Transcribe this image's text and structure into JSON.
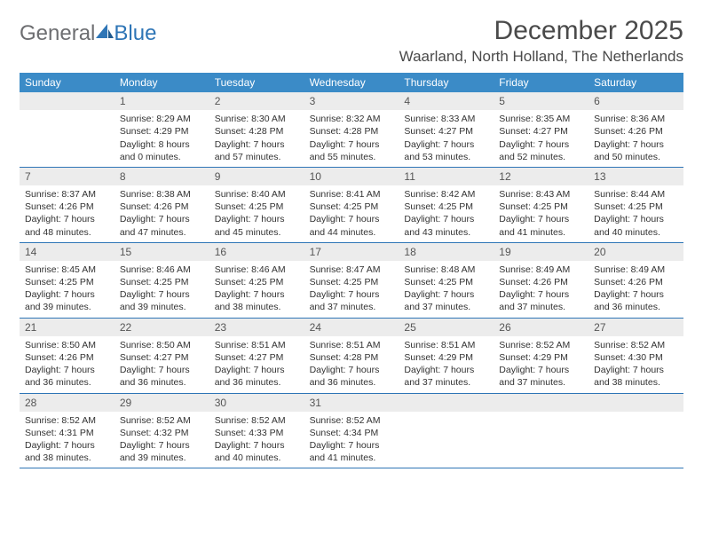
{
  "logo": {
    "general": "General",
    "blue": "Blue"
  },
  "title": "December 2025",
  "location": "Waarland, North Holland, The Netherlands",
  "colors": {
    "header_bg": "#3b8bc7",
    "header_text": "#ffffff",
    "daynum_bg": "#ececec",
    "border": "#2e75b6",
    "body_text": "#323232",
    "logo_gray": "#6d6e71",
    "logo_blue": "#2e75b6"
  },
  "weekdays": [
    "Sunday",
    "Monday",
    "Tuesday",
    "Wednesday",
    "Thursday",
    "Friday",
    "Saturday"
  ],
  "weeks": [
    [
      {
        "day": "",
        "sunrise": "",
        "sunset": "",
        "d1": "",
        "d2": ""
      },
      {
        "day": "1",
        "sunrise": "Sunrise: 8:29 AM",
        "sunset": "Sunset: 4:29 PM",
        "d1": "Daylight: 8 hours",
        "d2": "and 0 minutes."
      },
      {
        "day": "2",
        "sunrise": "Sunrise: 8:30 AM",
        "sunset": "Sunset: 4:28 PM",
        "d1": "Daylight: 7 hours",
        "d2": "and 57 minutes."
      },
      {
        "day": "3",
        "sunrise": "Sunrise: 8:32 AM",
        "sunset": "Sunset: 4:28 PM",
        "d1": "Daylight: 7 hours",
        "d2": "and 55 minutes."
      },
      {
        "day": "4",
        "sunrise": "Sunrise: 8:33 AM",
        "sunset": "Sunset: 4:27 PM",
        "d1": "Daylight: 7 hours",
        "d2": "and 53 minutes."
      },
      {
        "day": "5",
        "sunrise": "Sunrise: 8:35 AM",
        "sunset": "Sunset: 4:27 PM",
        "d1": "Daylight: 7 hours",
        "d2": "and 52 minutes."
      },
      {
        "day": "6",
        "sunrise": "Sunrise: 8:36 AM",
        "sunset": "Sunset: 4:26 PM",
        "d1": "Daylight: 7 hours",
        "d2": "and 50 minutes."
      }
    ],
    [
      {
        "day": "7",
        "sunrise": "Sunrise: 8:37 AM",
        "sunset": "Sunset: 4:26 PM",
        "d1": "Daylight: 7 hours",
        "d2": "and 48 minutes."
      },
      {
        "day": "8",
        "sunrise": "Sunrise: 8:38 AM",
        "sunset": "Sunset: 4:26 PM",
        "d1": "Daylight: 7 hours",
        "d2": "and 47 minutes."
      },
      {
        "day": "9",
        "sunrise": "Sunrise: 8:40 AM",
        "sunset": "Sunset: 4:25 PM",
        "d1": "Daylight: 7 hours",
        "d2": "and 45 minutes."
      },
      {
        "day": "10",
        "sunrise": "Sunrise: 8:41 AM",
        "sunset": "Sunset: 4:25 PM",
        "d1": "Daylight: 7 hours",
        "d2": "and 44 minutes."
      },
      {
        "day": "11",
        "sunrise": "Sunrise: 8:42 AM",
        "sunset": "Sunset: 4:25 PM",
        "d1": "Daylight: 7 hours",
        "d2": "and 43 minutes."
      },
      {
        "day": "12",
        "sunrise": "Sunrise: 8:43 AM",
        "sunset": "Sunset: 4:25 PM",
        "d1": "Daylight: 7 hours",
        "d2": "and 41 minutes."
      },
      {
        "day": "13",
        "sunrise": "Sunrise: 8:44 AM",
        "sunset": "Sunset: 4:25 PM",
        "d1": "Daylight: 7 hours",
        "d2": "and 40 minutes."
      }
    ],
    [
      {
        "day": "14",
        "sunrise": "Sunrise: 8:45 AM",
        "sunset": "Sunset: 4:25 PM",
        "d1": "Daylight: 7 hours",
        "d2": "and 39 minutes."
      },
      {
        "day": "15",
        "sunrise": "Sunrise: 8:46 AM",
        "sunset": "Sunset: 4:25 PM",
        "d1": "Daylight: 7 hours",
        "d2": "and 39 minutes."
      },
      {
        "day": "16",
        "sunrise": "Sunrise: 8:46 AM",
        "sunset": "Sunset: 4:25 PM",
        "d1": "Daylight: 7 hours",
        "d2": "and 38 minutes."
      },
      {
        "day": "17",
        "sunrise": "Sunrise: 8:47 AM",
        "sunset": "Sunset: 4:25 PM",
        "d1": "Daylight: 7 hours",
        "d2": "and 37 minutes."
      },
      {
        "day": "18",
        "sunrise": "Sunrise: 8:48 AM",
        "sunset": "Sunset: 4:25 PM",
        "d1": "Daylight: 7 hours",
        "d2": "and 37 minutes."
      },
      {
        "day": "19",
        "sunrise": "Sunrise: 8:49 AM",
        "sunset": "Sunset: 4:26 PM",
        "d1": "Daylight: 7 hours",
        "d2": "and 37 minutes."
      },
      {
        "day": "20",
        "sunrise": "Sunrise: 8:49 AM",
        "sunset": "Sunset: 4:26 PM",
        "d1": "Daylight: 7 hours",
        "d2": "and 36 minutes."
      }
    ],
    [
      {
        "day": "21",
        "sunrise": "Sunrise: 8:50 AM",
        "sunset": "Sunset: 4:26 PM",
        "d1": "Daylight: 7 hours",
        "d2": "and 36 minutes."
      },
      {
        "day": "22",
        "sunrise": "Sunrise: 8:50 AM",
        "sunset": "Sunset: 4:27 PM",
        "d1": "Daylight: 7 hours",
        "d2": "and 36 minutes."
      },
      {
        "day": "23",
        "sunrise": "Sunrise: 8:51 AM",
        "sunset": "Sunset: 4:27 PM",
        "d1": "Daylight: 7 hours",
        "d2": "and 36 minutes."
      },
      {
        "day": "24",
        "sunrise": "Sunrise: 8:51 AM",
        "sunset": "Sunset: 4:28 PM",
        "d1": "Daylight: 7 hours",
        "d2": "and 36 minutes."
      },
      {
        "day": "25",
        "sunrise": "Sunrise: 8:51 AM",
        "sunset": "Sunset: 4:29 PM",
        "d1": "Daylight: 7 hours",
        "d2": "and 37 minutes."
      },
      {
        "day": "26",
        "sunrise": "Sunrise: 8:52 AM",
        "sunset": "Sunset: 4:29 PM",
        "d1": "Daylight: 7 hours",
        "d2": "and 37 minutes."
      },
      {
        "day": "27",
        "sunrise": "Sunrise: 8:52 AM",
        "sunset": "Sunset: 4:30 PM",
        "d1": "Daylight: 7 hours",
        "d2": "and 38 minutes."
      }
    ],
    [
      {
        "day": "28",
        "sunrise": "Sunrise: 8:52 AM",
        "sunset": "Sunset: 4:31 PM",
        "d1": "Daylight: 7 hours",
        "d2": "and 38 minutes."
      },
      {
        "day": "29",
        "sunrise": "Sunrise: 8:52 AM",
        "sunset": "Sunset: 4:32 PM",
        "d1": "Daylight: 7 hours",
        "d2": "and 39 minutes."
      },
      {
        "day": "30",
        "sunrise": "Sunrise: 8:52 AM",
        "sunset": "Sunset: 4:33 PM",
        "d1": "Daylight: 7 hours",
        "d2": "and 40 minutes."
      },
      {
        "day": "31",
        "sunrise": "Sunrise: 8:52 AM",
        "sunset": "Sunset: 4:34 PM",
        "d1": "Daylight: 7 hours",
        "d2": "and 41 minutes."
      },
      {
        "day": "",
        "sunrise": "",
        "sunset": "",
        "d1": "",
        "d2": ""
      },
      {
        "day": "",
        "sunrise": "",
        "sunset": "",
        "d1": "",
        "d2": ""
      },
      {
        "day": "",
        "sunrise": "",
        "sunset": "",
        "d1": "",
        "d2": ""
      }
    ]
  ]
}
